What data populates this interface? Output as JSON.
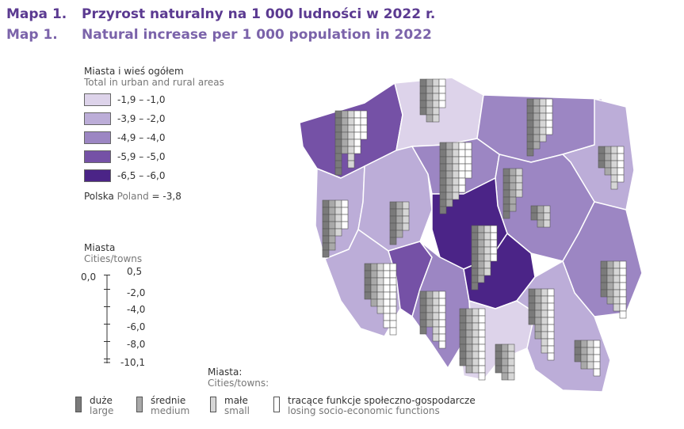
{
  "title": {
    "pl_number": "Mapa 1.",
    "pl_text": "Przyrost naturalny na 1 000 ludności w 2022 r.",
    "en_number": "Map 1.",
    "en_text": "Natural increase per 1 000 population in 2022"
  },
  "legend_total": {
    "heading_pl": "Miasta i wieś ogółem",
    "heading_en": "Total in urban and rural areas",
    "classes": [
      {
        "label": "-1,9 – -1,0",
        "color": "#ddd3ea"
      },
      {
        "label": "-3,9 – -2,0",
        "color": "#bcadd8"
      },
      {
        "label": "-4,9 – -4,0",
        "color": "#9c86c3"
      },
      {
        "label": "-5,9 – -5,0",
        "color": "#7551a6"
      },
      {
        "label": "-6,5 – -6,0",
        "color": "#4b2487"
      }
    ],
    "poland_pl": "Polska",
    "poland_en": "Poland",
    "poland_value": "= -3,8"
  },
  "legend_cities": {
    "heading_pl": "Miasta",
    "heading_en": "Cities/towns",
    "scale_labels": [
      "0,0",
      "0,5",
      "-2,0",
      "-4,0",
      "-6,0",
      "-8,0",
      "-10,1"
    ]
  },
  "legend_city_types": {
    "heading_pl": "Miasta:",
    "heading_en": "Cities/towns:",
    "types": [
      {
        "pl": "duże",
        "en": "large",
        "color": "#7a7a7a"
      },
      {
        "pl": "średnie",
        "en": "medium",
        "color": "#a9a9a9"
      },
      {
        "pl": "małe",
        "en": "small",
        "color": "#d6d6d6"
      },
      {
        "pl": "tracące funkcje społeczno-gospodarcze",
        "en": "losing socio-economic functions",
        "color": "#ffffff"
      }
    ]
  }
}
